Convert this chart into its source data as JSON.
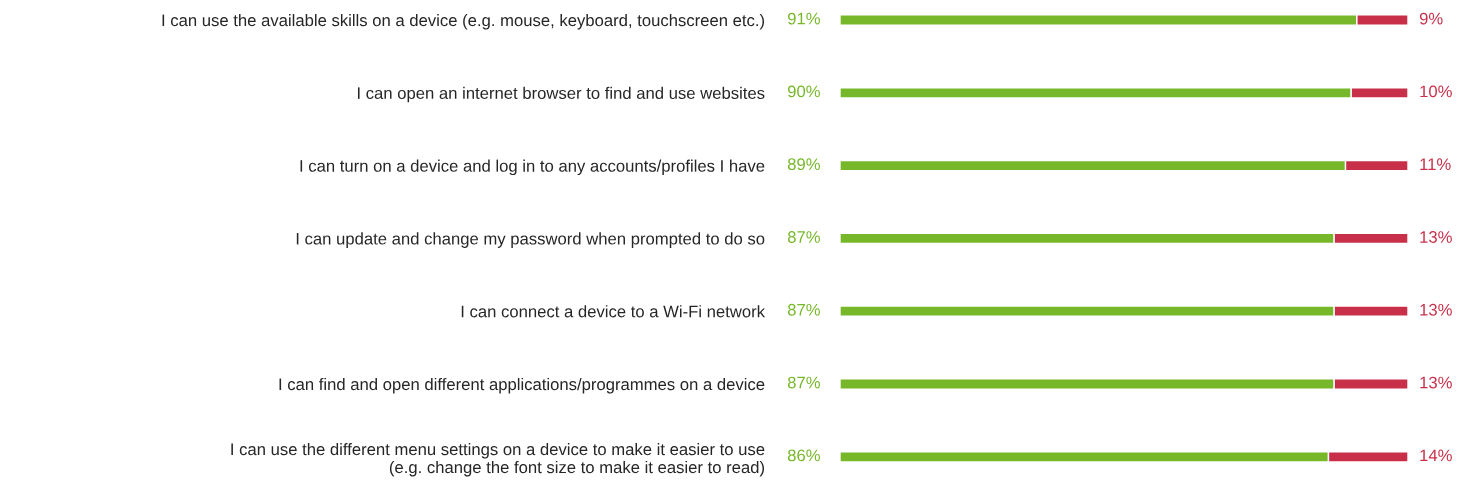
{
  "chart_data": {
    "type": "bar",
    "orientation": "horizontal",
    "stacked": true,
    "categories": [
      "I can use the available skills on a device (e.g. mouse, keyboard, touchscreen etc.)",
      "I can open an internet browser to find and use websites",
      "I can turn on a device and log in to any accounts/profiles I have",
      "I can update and change my password when prompted to do so",
      "I can connect a device to a Wi-Fi network",
      "I can find and open different applications/programmes on a device",
      "I can use the different menu settings on a device to make it easier to use\n(e.g. change the font size to make it easier to read)"
    ],
    "series": [
      {
        "color": "#76b82a",
        "values": [
          91,
          90,
          89,
          87,
          87,
          87,
          86
        ],
        "value_labels": [
          "91%",
          "90%",
          "89%",
          "87%",
          "87%",
          "87%",
          "86%"
        ]
      },
      {
        "color": "#c8304a",
        "values": [
          9,
          10,
          11,
          13,
          13,
          13,
          14
        ],
        "value_labels": [
          "9%",
          "10%",
          "11%",
          "13%",
          "13%",
          "13%",
          "14%"
        ]
      }
    ]
  }
}
